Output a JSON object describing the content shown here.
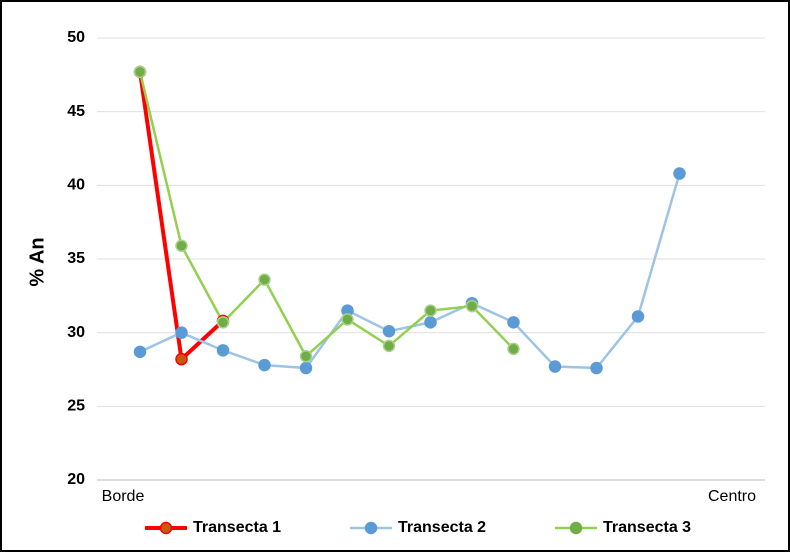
{
  "chart_data": {
    "type": "line",
    "ylabel": "% An",
    "x_start_label": "Borde",
    "x_end_label": "Centro",
    "categories": [
      null,
      null,
      null,
      null,
      null,
      null,
      null,
      null,
      null,
      null,
      null,
      null,
      null,
      null
    ],
    "series": [
      {
        "name": "Transecta 1",
        "color": "#ff0000",
        "marker_color": "#c55a11",
        "values": [
          47.7,
          28.2,
          30.8,
          null,
          null,
          null,
          null,
          null,
          null,
          null,
          null,
          null,
          null,
          null
        ]
      },
      {
        "name": "Transecta 2",
        "color": "#9dc3e6",
        "marker_color": "#5b9bd5",
        "values": [
          28.7,
          30.0,
          28.8,
          27.8,
          27.6,
          31.5,
          30.1,
          30.7,
          32.0,
          30.7,
          27.7,
          27.6,
          31.1,
          40.8
        ]
      },
      {
        "name": "Transecta 3",
        "color": "#92d050",
        "marker_color": "#70ad47",
        "values": [
          47.7,
          35.9,
          30.7,
          33.6,
          28.4,
          30.9,
          29.1,
          31.5,
          31.8,
          28.9,
          null,
          null,
          null,
          null
        ]
      }
    ],
    "ylim": [
      20,
      50
    ],
    "yticks": [
      20,
      25,
      30,
      35,
      40,
      45,
      50
    ],
    "grid": true,
    "legend": "bottom"
  }
}
